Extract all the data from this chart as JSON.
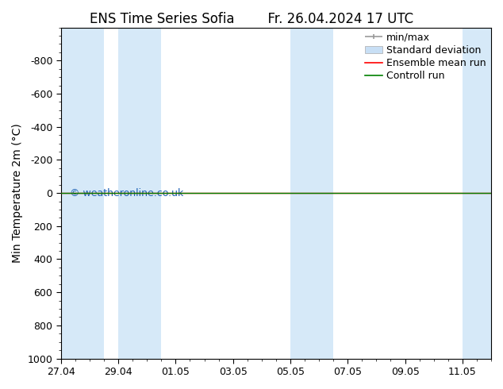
{
  "title_left": "ENS Time Series Sofia",
  "title_right": "Fr. 26.04.2024 17 UTC",
  "ylabel": "Min Temperature 2m (°C)",
  "ylim_bottom": 1000,
  "ylim_top": -1000,
  "yticks": [
    -800,
    -600,
    -400,
    -200,
    0,
    200,
    400,
    600,
    800,
    1000
  ],
  "xtick_labels": [
    "27.04",
    "29.04",
    "01.05",
    "03.05",
    "05.05",
    "07.05",
    "09.05",
    "11.05"
  ],
  "xtick_positions": [
    0,
    2,
    4,
    6,
    8,
    10,
    12,
    14
  ],
  "x_min": 0,
  "x_max": 15,
  "shaded_bands": [
    [
      0.0,
      1.5
    ],
    [
      2.0,
      3.5
    ],
    [
      8.0,
      9.5
    ],
    [
      14.0,
      15.0
    ]
  ],
  "shaded_color": "#d6e9f8",
  "line_y_green": 0.0,
  "line_color_green": "#008000",
  "line_color_red": "#ff0000",
  "watermark": "© weatheronline.co.uk",
  "watermark_color": "#1a5fb4",
  "background_color": "#ffffff",
  "font_size_title": 12,
  "font_size_axis_label": 10,
  "font_size_tick": 9,
  "font_size_legend": 9,
  "font_size_watermark": 9,
  "legend_minmax_color": "#999999",
  "legend_std_color": "#c8dff5",
  "legend_std_edge": "#aaaaaa"
}
